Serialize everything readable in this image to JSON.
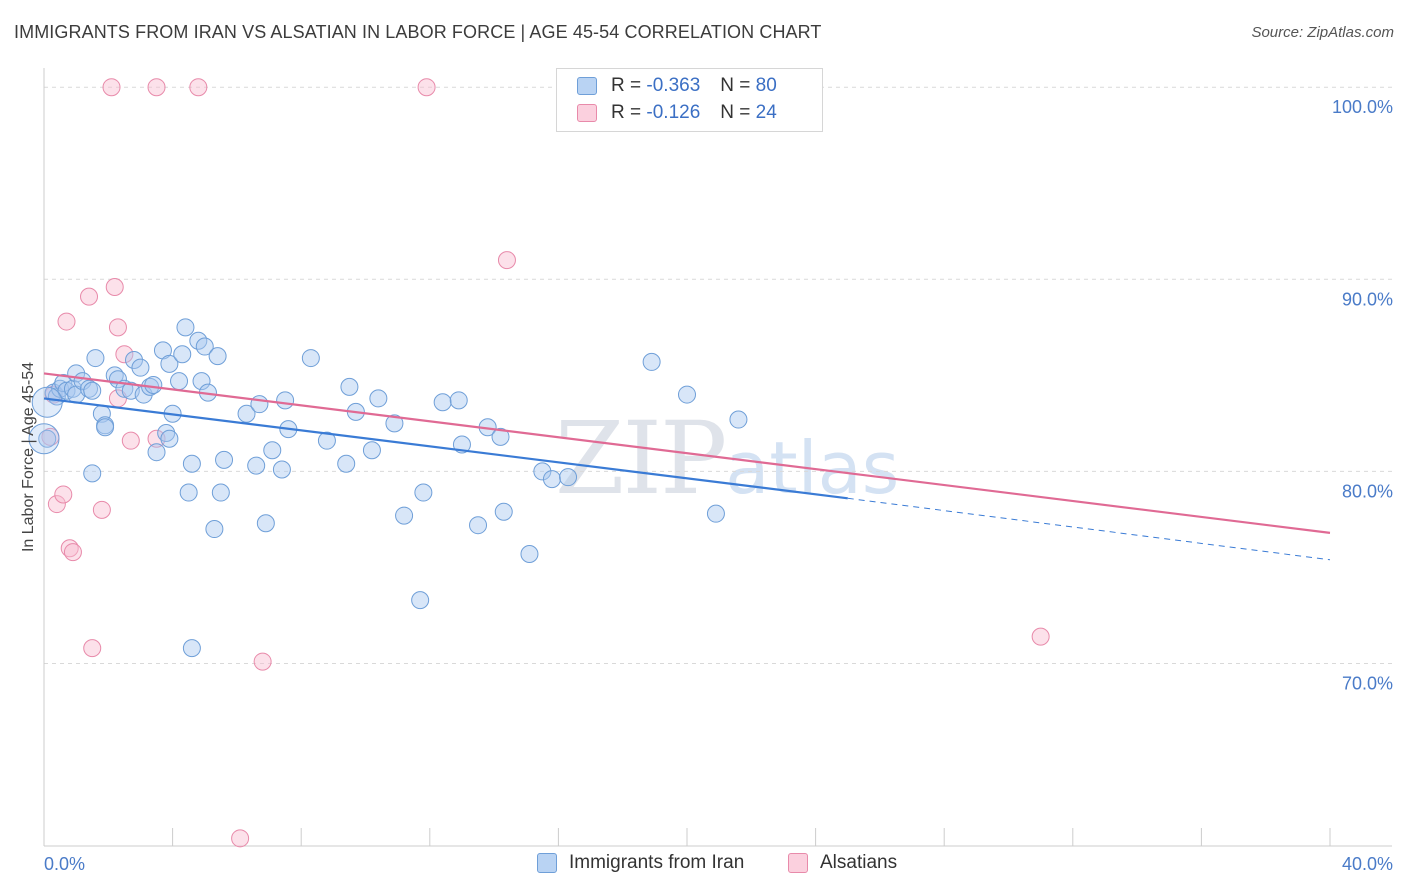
{
  "header": {
    "title": "IMMIGRANTS FROM IRAN VS ALSATIAN IN LABOR FORCE | AGE 45-54 CORRELATION CHART",
    "source": "Source: ZipAtlas.com"
  },
  "watermark": {
    "zip": "ZIP",
    "atlas": "atlas"
  },
  "legend": {
    "rows": [
      {
        "r_label": "R = ",
        "r_value": "-0.363",
        "n_label": "N = ",
        "n_value": "80",
        "color": "#a8c8f0"
      },
      {
        "r_label": "R = ",
        "r_value": "-0.126",
        "n_label": "N = ",
        "n_value": "24",
        "color": "#f8bcd0"
      }
    ]
  },
  "bottom_legend": {
    "items": [
      {
        "label": "Immigrants from Iran",
        "color": "#a8c8f0"
      },
      {
        "label": "Alsatians",
        "color": "#f8bcd0"
      }
    ]
  },
  "chart_data": {
    "type": "scatter",
    "ylabel": "In Labor Force | Age 45-54",
    "xlim": [
      0,
      40
    ],
    "ylim": [
      60.5,
      101
    ],
    "x_tick_labels": [
      "0.0%",
      "40.0%"
    ],
    "y_ticks": [
      {
        "value": 100,
        "label": "100.0%"
      },
      {
        "value": 90,
        "label": "90.0%"
      },
      {
        "value": 80,
        "label": "80.0%"
      },
      {
        "value": 70,
        "label": "70.0%"
      }
    ],
    "grid": true,
    "colors": {
      "iran_fill": "#a8c8f0",
      "iran_stroke": "#6f9fd8",
      "iran_line": "#3a7bd5",
      "alsatian_fill": "#f8bcd0",
      "alsatian_stroke": "#e88aaa",
      "alsatian_line": "#e06a94"
    },
    "series": [
      {
        "name": "Immigrants from Iran",
        "trend": {
          "x0": 0,
          "y0": 83.8,
          "x1": 25,
          "y1": 78.6,
          "dash_to_x": 40,
          "dash_to_y": 75.4
        },
        "points": [
          [
            0.3,
            84.1
          ],
          [
            0.4,
            83.9
          ],
          [
            0.5,
            84.3
          ],
          [
            0.6,
            84.6
          ],
          [
            0.7,
            84.2
          ],
          [
            0.9,
            84.3
          ],
          [
            1.0,
            84.0
          ],
          [
            1.0,
            85.1
          ],
          [
            1.2,
            84.7
          ],
          [
            1.4,
            84.3
          ],
          [
            1.5,
            84.2
          ],
          [
            1.6,
            85.9
          ],
          [
            1.8,
            83.0
          ],
          [
            1.9,
            82.4
          ],
          [
            2.2,
            85.0
          ],
          [
            2.3,
            84.8
          ],
          [
            2.5,
            84.3
          ],
          [
            2.7,
            84.2
          ],
          [
            2.8,
            85.8
          ],
          [
            3.0,
            85.4
          ],
          [
            3.1,
            84.0
          ],
          [
            3.3,
            84.4
          ],
          [
            3.4,
            84.5
          ],
          [
            3.5,
            81.0
          ],
          [
            3.7,
            86.3
          ],
          [
            3.8,
            82.0
          ],
          [
            3.9,
            85.6
          ],
          [
            3.9,
            81.7
          ],
          [
            4.0,
            83.0
          ],
          [
            4.2,
            84.7
          ],
          [
            4.3,
            86.1
          ],
          [
            4.4,
            87.5
          ],
          [
            4.5,
            78.9
          ],
          [
            4.6,
            80.4
          ],
          [
            4.8,
            86.8
          ],
          [
            4.9,
            84.7
          ],
          [
            5.0,
            86.5
          ],
          [
            5.1,
            84.1
          ],
          [
            5.3,
            77.0
          ],
          [
            5.4,
            86.0
          ],
          [
            5.5,
            78.9
          ],
          [
            5.6,
            80.6
          ],
          [
            6.3,
            83.0
          ],
          [
            6.6,
            80.3
          ],
          [
            6.7,
            83.5
          ],
          [
            6.9,
            77.3
          ],
          [
            7.1,
            81.1
          ],
          [
            7.4,
            80.1
          ],
          [
            7.5,
            83.7
          ],
          [
            7.6,
            82.2
          ],
          [
            8.3,
            85.9
          ],
          [
            8.8,
            81.6
          ],
          [
            9.4,
            80.4
          ],
          [
            9.5,
            84.4
          ],
          [
            9.7,
            83.1
          ],
          [
            10.2,
            81.1
          ],
          [
            10.4,
            83.8
          ],
          [
            10.9,
            82.5
          ],
          [
            11.2,
            77.7
          ],
          [
            11.7,
            73.3
          ],
          [
            11.8,
            78.9
          ],
          [
            12.4,
            83.6
          ],
          [
            12.9,
            83.7
          ],
          [
            13.0,
            81.4
          ],
          [
            13.5,
            77.2
          ],
          [
            13.8,
            82.3
          ],
          [
            14.2,
            81.8
          ],
          [
            14.3,
            77.9
          ],
          [
            15.1,
            75.7
          ],
          [
            15.5,
            80.0
          ],
          [
            15.8,
            79.6
          ],
          [
            16.3,
            79.7
          ],
          [
            18.9,
            85.7
          ],
          [
            20.0,
            84.0
          ],
          [
            20.9,
            77.8
          ],
          [
            21.6,
            82.7
          ],
          [
            4.6,
            70.8
          ],
          [
            1.5,
            79.9
          ],
          [
            1.9,
            82.3
          ],
          [
            0.1,
            81.7
          ]
        ],
        "big_points": [
          [
            0.0,
            81.7
          ],
          [
            0.1,
            83.6
          ]
        ]
      },
      {
        "name": "Alsatians",
        "trend": {
          "x0": 0,
          "y0": 85.1,
          "x1": 40,
          "y1": 76.8
        },
        "points": [
          [
            0.2,
            81.8
          ],
          [
            0.3,
            84.0
          ],
          [
            0.4,
            78.3
          ],
          [
            0.6,
            78.8
          ],
          [
            0.7,
            87.8
          ],
          [
            0.8,
            76.0
          ],
          [
            0.9,
            75.8
          ],
          [
            1.4,
            89.1
          ],
          [
            1.5,
            70.8
          ],
          [
            1.8,
            78.0
          ],
          [
            2.1,
            100.0
          ],
          [
            2.2,
            89.6
          ],
          [
            2.3,
            87.5
          ],
          [
            2.5,
            86.1
          ],
          [
            2.7,
            81.6
          ],
          [
            3.5,
            100.0
          ],
          [
            3.5,
            81.7
          ],
          [
            4.8,
            100.0
          ],
          [
            6.1,
            60.9
          ],
          [
            6.8,
            70.1
          ],
          [
            11.9,
            100.0
          ],
          [
            14.4,
            91.0
          ],
          [
            31.0,
            71.4
          ],
          [
            2.3,
            83.8
          ]
        ]
      }
    ]
  }
}
